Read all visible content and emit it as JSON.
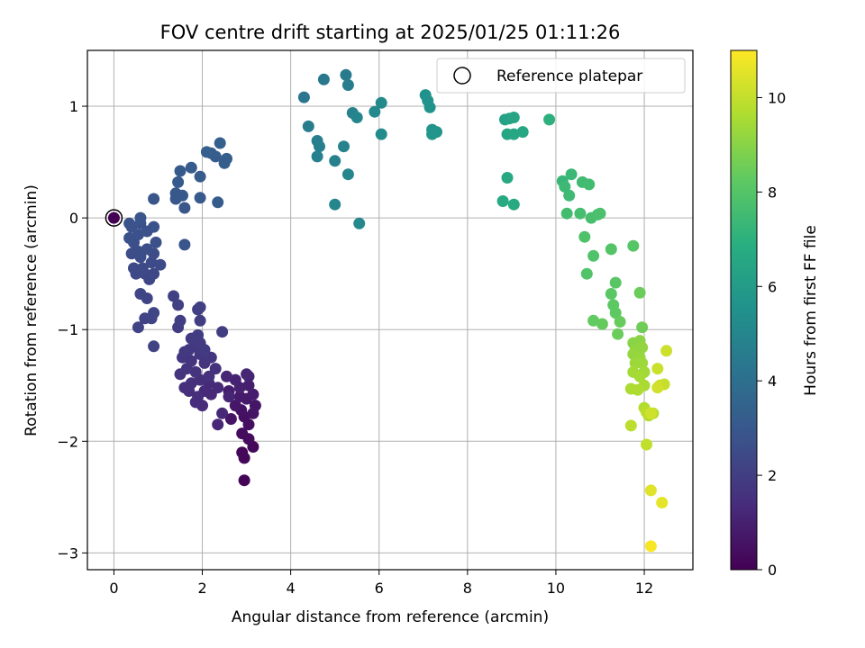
{
  "chart_data": {
    "type": "scatter",
    "title": "FOV centre drift starting at 2025/01/25 01:11:26",
    "xlabel": "Angular distance from reference (arcmin)",
    "ylabel": "Rotation from reference (arcmin)",
    "xlim": [
      -0.6,
      13.1
    ],
    "ylim": [
      -3.15,
      1.5
    ],
    "xticks": [
      0,
      2,
      4,
      6,
      8,
      10,
      12
    ],
    "yticks": [
      -3,
      -2,
      -1,
      0,
      1
    ],
    "grid": true,
    "legend": {
      "position": "top-right",
      "entries": [
        "Reference platepar"
      ]
    },
    "colorbar": {
      "label": "Hours from first FF file",
      "min": 0,
      "max": 11,
      "ticks": [
        0,
        2,
        4,
        6,
        8,
        10
      ],
      "colormap": "viridis"
    },
    "reference_point": {
      "x": 0,
      "y": 0,
      "c": 0
    },
    "points": [
      {
        "x": 2.95,
        "y": -2.35,
        "c": 0.1
      },
      {
        "x": 2.9,
        "y": -2.1,
        "c": 0.15
      },
      {
        "x": 2.95,
        "y": -2.15,
        "c": 0.2
      },
      {
        "x": 3.15,
        "y": -2.05,
        "c": 0.25
      },
      {
        "x": 3.05,
        "y": -1.98,
        "c": 0.3
      },
      {
        "x": 2.9,
        "y": -1.93,
        "c": 0.35
      },
      {
        "x": 3.05,
        "y": -1.85,
        "c": 0.4
      },
      {
        "x": 2.95,
        "y": -1.78,
        "c": 0.45
      },
      {
        "x": 2.88,
        "y": -1.72,
        "c": 0.5
      },
      {
        "x": 3.15,
        "y": -1.75,
        "c": 0.55
      },
      {
        "x": 2.65,
        "y": -1.8,
        "c": 0.6
      },
      {
        "x": 3.2,
        "y": -1.68,
        "c": 0.65
      },
      {
        "x": 2.75,
        "y": -1.68,
        "c": 0.7
      },
      {
        "x": 3.0,
        "y": -1.62,
        "c": 0.75
      },
      {
        "x": 2.85,
        "y": -1.6,
        "c": 0.8
      },
      {
        "x": 3.15,
        "y": -1.58,
        "c": 0.85
      },
      {
        "x": 2.6,
        "y": -1.55,
        "c": 0.9
      },
      {
        "x": 3.05,
        "y": -1.5,
        "c": 0.95
      },
      {
        "x": 2.85,
        "y": -1.52,
        "c": 1.0
      },
      {
        "x": 2.75,
        "y": -1.45,
        "c": 1.05
      },
      {
        "x": 3.05,
        "y": -1.42,
        "c": 1.1
      },
      {
        "x": 2.6,
        "y": -1.6,
        "c": 1.12
      },
      {
        "x": 2.55,
        "y": -1.42,
        "c": 1.15
      },
      {
        "x": 3.0,
        "y": -1.4,
        "c": 1.18
      },
      {
        "x": 2.35,
        "y": -1.85,
        "c": 1.2
      },
      {
        "x": 2.45,
        "y": -1.75,
        "c": 1.22
      },
      {
        "x": 2.2,
        "y": -1.58,
        "c": 1.25
      },
      {
        "x": 2.35,
        "y": -1.52,
        "c": 1.28
      },
      {
        "x": 2.15,
        "y": -1.48,
        "c": 1.3
      },
      {
        "x": 2.05,
        "y": -1.55,
        "c": 1.32
      },
      {
        "x": 2.0,
        "y": -1.68,
        "c": 1.35
      },
      {
        "x": 1.85,
        "y": -1.65,
        "c": 1.38
      },
      {
        "x": 1.9,
        "y": -1.6,
        "c": 1.4
      },
      {
        "x": 1.7,
        "y": -1.55,
        "c": 1.42
      },
      {
        "x": 1.6,
        "y": -1.52,
        "c": 1.45
      },
      {
        "x": 1.75,
        "y": -1.48,
        "c": 1.48
      },
      {
        "x": 1.95,
        "y": -1.45,
        "c": 1.5
      },
      {
        "x": 2.15,
        "y": -1.42,
        "c": 1.52
      },
      {
        "x": 2.3,
        "y": -1.35,
        "c": 1.55
      },
      {
        "x": 1.85,
        "y": -1.38,
        "c": 1.58
      },
      {
        "x": 1.5,
        "y": -1.4,
        "c": 1.6
      },
      {
        "x": 1.65,
        "y": -1.35,
        "c": 1.62
      },
      {
        "x": 2.05,
        "y": -1.3,
        "c": 1.65
      },
      {
        "x": 1.75,
        "y": -1.28,
        "c": 1.68
      },
      {
        "x": 1.55,
        "y": -1.25,
        "c": 1.7
      },
      {
        "x": 1.95,
        "y": -1.22,
        "c": 1.72
      },
      {
        "x": 2.2,
        "y": -1.25,
        "c": 1.75
      },
      {
        "x": 1.7,
        "y": -1.18,
        "c": 1.78
      },
      {
        "x": 1.85,
        "y": -1.15,
        "c": 1.8
      },
      {
        "x": 1.6,
        "y": -1.2,
        "c": 1.82
      },
      {
        "x": 1.95,
        "y": -1.12,
        "c": 1.85
      },
      {
        "x": 1.75,
        "y": -1.08,
        "c": 1.88
      },
      {
        "x": 2.05,
        "y": -1.18,
        "c": 1.9
      },
      {
        "x": 2.45,
        "y": -1.02,
        "c": 1.92
      },
      {
        "x": 1.9,
        "y": -1.05,
        "c": 1.95
      },
      {
        "x": 1.45,
        "y": -0.98,
        "c": 1.98
      },
      {
        "x": 1.95,
        "y": -0.92,
        "c": 2.0
      },
      {
        "x": 1.5,
        "y": -0.92,
        "c": 2.02
      },
      {
        "x": 1.9,
        "y": -0.82,
        "c": 2.05
      },
      {
        "x": 1.95,
        "y": -0.8,
        "c": 2.08
      },
      {
        "x": 1.45,
        "y": -0.78,
        "c": 2.1
      },
      {
        "x": 1.35,
        "y": -0.7,
        "c": 2.12
      },
      {
        "x": 0.9,
        "y": -1.15,
        "c": 2.15
      },
      {
        "x": 0.55,
        "y": -0.98,
        "c": 2.18
      },
      {
        "x": 0.7,
        "y": -0.9,
        "c": 2.2
      },
      {
        "x": 0.85,
        "y": -0.9,
        "c": 2.22
      },
      {
        "x": 0.9,
        "y": -0.85,
        "c": 2.25
      },
      {
        "x": 0.75,
        "y": -0.72,
        "c": 2.28
      },
      {
        "x": 0.6,
        "y": -0.68,
        "c": 2.3
      },
      {
        "x": 0.8,
        "y": -0.55,
        "c": 2.32
      },
      {
        "x": 0.7,
        "y": -0.5,
        "c": 2.35
      },
      {
        "x": 0.9,
        "y": -0.5,
        "c": 2.38
      },
      {
        "x": 0.5,
        "y": -0.5,
        "c": 2.4
      },
      {
        "x": 0.45,
        "y": -0.45,
        "c": 2.42
      },
      {
        "x": 0.65,
        "y": -0.45,
        "c": 2.45
      },
      {
        "x": 0.85,
        "y": -0.4,
        "c": 2.48
      },
      {
        "x": 1.05,
        "y": -0.42,
        "c": 2.5
      },
      {
        "x": 0.9,
        "y": -0.32,
        "c": 2.52
      },
      {
        "x": 0.6,
        "y": -0.35,
        "c": 2.55
      },
      {
        "x": 0.4,
        "y": -0.32,
        "c": 2.58
      },
      {
        "x": 0.55,
        "y": -0.3,
        "c": 2.6
      },
      {
        "x": 0.75,
        "y": -0.28,
        "c": 2.62
      },
      {
        "x": 0.45,
        "y": -0.22,
        "c": 2.65
      },
      {
        "x": 0.95,
        "y": -0.22,
        "c": 2.68
      },
      {
        "x": 0.35,
        "y": -0.18,
        "c": 2.7
      },
      {
        "x": 0.55,
        "y": -0.15,
        "c": 2.72
      },
      {
        "x": 0.75,
        "y": -0.12,
        "c": 2.75
      },
      {
        "x": 0.4,
        "y": -0.08,
        "c": 2.78
      },
      {
        "x": 0.9,
        "y": -0.08,
        "c": 2.8
      },
      {
        "x": 0.6,
        "y": -0.05,
        "c": 2.82
      },
      {
        "x": 0.35,
        "y": -0.05,
        "c": 2.85
      },
      {
        "x": 0.6,
        "y": 0.0,
        "c": 2.88
      },
      {
        "x": 1.6,
        "y": -0.24,
        "c": 2.9
      },
      {
        "x": 0.9,
        "y": 0.17,
        "c": 2.92
      },
      {
        "x": 1.6,
        "y": 0.09,
        "c": 2.95
      },
      {
        "x": 1.4,
        "y": 0.17,
        "c": 2.98
      },
      {
        "x": 1.55,
        "y": 0.2,
        "c": 3.0
      },
      {
        "x": 1.4,
        "y": 0.22,
        "c": 3.02
      },
      {
        "x": 1.95,
        "y": 0.18,
        "c": 3.05
      },
      {
        "x": 1.45,
        "y": 0.32,
        "c": 3.08
      },
      {
        "x": 1.5,
        "y": 0.42,
        "c": 3.1
      },
      {
        "x": 1.75,
        "y": 0.45,
        "c": 3.12
      },
      {
        "x": 1.95,
        "y": 0.37,
        "c": 3.15
      },
      {
        "x": 2.35,
        "y": 0.14,
        "c": 3.18
      },
      {
        "x": 2.2,
        "y": 0.58,
        "c": 3.2
      },
      {
        "x": 2.3,
        "y": 0.55,
        "c": 3.22
      },
      {
        "x": 2.5,
        "y": 0.49,
        "c": 3.25
      },
      {
        "x": 2.55,
        "y": 0.53,
        "c": 3.28
      },
      {
        "x": 2.4,
        "y": 0.67,
        "c": 3.3
      },
      {
        "x": 2.1,
        "y": 0.59,
        "c": 3.32
      },
      {
        "x": 4.3,
        "y": 1.08,
        "c": 4.3
      },
      {
        "x": 4.75,
        "y": 1.24,
        "c": 4.4
      },
      {
        "x": 5.25,
        "y": 1.28,
        "c": 4.5
      },
      {
        "x": 5.3,
        "y": 1.19,
        "c": 4.55
      },
      {
        "x": 4.4,
        "y": 0.82,
        "c": 4.6
      },
      {
        "x": 4.6,
        "y": 0.69,
        "c": 4.65
      },
      {
        "x": 4.65,
        "y": 0.64,
        "c": 4.7
      },
      {
        "x": 4.6,
        "y": 0.55,
        "c": 4.75
      },
      {
        "x": 5.0,
        "y": 0.51,
        "c": 4.8
      },
      {
        "x": 5.2,
        "y": 0.64,
        "c": 4.85
      },
      {
        "x": 5.4,
        "y": 0.94,
        "c": 4.9
      },
      {
        "x": 5.5,
        "y": 0.9,
        "c": 4.95
      },
      {
        "x": 5.3,
        "y": 0.39,
        "c": 5.0
      },
      {
        "x": 5.0,
        "y": 0.12,
        "c": 5.05
      },
      {
        "x": 5.55,
        "y": -0.05,
        "c": 5.1
      },
      {
        "x": 5.9,
        "y": 0.95,
        "c": 5.15
      },
      {
        "x": 6.05,
        "y": 1.03,
        "c": 5.2
      },
      {
        "x": 6.05,
        "y": 0.75,
        "c": 5.25
      },
      {
        "x": 7.05,
        "y": 1.1,
        "c": 5.5
      },
      {
        "x": 7.1,
        "y": 1.05,
        "c": 5.55
      },
      {
        "x": 7.15,
        "y": 0.99,
        "c": 5.6
      },
      {
        "x": 7.2,
        "y": 0.79,
        "c": 5.65
      },
      {
        "x": 7.3,
        "y": 0.77,
        "c": 5.7
      },
      {
        "x": 7.2,
        "y": 0.75,
        "c": 5.75
      },
      {
        "x": 8.85,
        "y": 0.88,
        "c": 6.3
      },
      {
        "x": 8.95,
        "y": 0.89,
        "c": 6.35
      },
      {
        "x": 9.05,
        "y": 0.9,
        "c": 6.4
      },
      {
        "x": 8.9,
        "y": 0.75,
        "c": 6.45
      },
      {
        "x": 9.05,
        "y": 0.75,
        "c": 6.5
      },
      {
        "x": 9.25,
        "y": 0.77,
        "c": 6.55
      },
      {
        "x": 8.9,
        "y": 0.36,
        "c": 6.6
      },
      {
        "x": 8.8,
        "y": 0.15,
        "c": 6.65
      },
      {
        "x": 9.05,
        "y": 0.12,
        "c": 6.7
      },
      {
        "x": 9.85,
        "y": 0.88,
        "c": 7.0
      },
      {
        "x": 10.15,
        "y": 0.33,
        "c": 7.3
      },
      {
        "x": 10.35,
        "y": 0.39,
        "c": 7.35
      },
      {
        "x": 10.2,
        "y": 0.28,
        "c": 7.4
      },
      {
        "x": 10.3,
        "y": 0.2,
        "c": 7.45
      },
      {
        "x": 10.6,
        "y": 0.32,
        "c": 7.5
      },
      {
        "x": 10.75,
        "y": 0.3,
        "c": 7.55
      },
      {
        "x": 10.25,
        "y": 0.04,
        "c": 7.6
      },
      {
        "x": 10.55,
        "y": 0.04,
        "c": 7.65
      },
      {
        "x": 10.8,
        "y": 0.0,
        "c": 7.7
      },
      {
        "x": 10.95,
        "y": 0.03,
        "c": 7.75
      },
      {
        "x": 11.0,
        "y": 0.04,
        "c": 7.8
      },
      {
        "x": 10.65,
        "y": -0.17,
        "c": 7.85
      },
      {
        "x": 10.85,
        "y": -0.34,
        "c": 7.9
      },
      {
        "x": 10.7,
        "y": -0.5,
        "c": 7.95
      },
      {
        "x": 11.25,
        "y": -0.28,
        "c": 8.0
      },
      {
        "x": 11.75,
        "y": -0.25,
        "c": 8.05
      },
      {
        "x": 11.35,
        "y": -0.58,
        "c": 8.1
      },
      {
        "x": 11.25,
        "y": -0.68,
        "c": 8.15
      },
      {
        "x": 11.3,
        "y": -0.78,
        "c": 8.2
      },
      {
        "x": 11.35,
        "y": -0.85,
        "c": 8.25
      },
      {
        "x": 10.85,
        "y": -0.92,
        "c": 8.3
      },
      {
        "x": 11.05,
        "y": -0.95,
        "c": 8.35
      },
      {
        "x": 11.45,
        "y": -0.93,
        "c": 8.4
      },
      {
        "x": 11.4,
        "y": -1.04,
        "c": 8.45
      },
      {
        "x": 11.9,
        "y": -0.67,
        "c": 8.5
      },
      {
        "x": 11.95,
        "y": -0.98,
        "c": 8.55
      },
      {
        "x": 11.75,
        "y": -1.12,
        "c": 9.0
      },
      {
        "x": 11.9,
        "y": -1.1,
        "c": 9.05
      },
      {
        "x": 11.8,
        "y": -1.18,
        "c": 9.1
      },
      {
        "x": 11.95,
        "y": -1.16,
        "c": 9.15
      },
      {
        "x": 11.75,
        "y": -1.22,
        "c": 9.2
      },
      {
        "x": 11.9,
        "y": -1.25,
        "c": 9.25
      },
      {
        "x": 11.8,
        "y": -1.3,
        "c": 9.3
      },
      {
        "x": 11.95,
        "y": -1.3,
        "c": 9.35
      },
      {
        "x": 12.0,
        "y": -1.38,
        "c": 9.4
      },
      {
        "x": 11.75,
        "y": -1.38,
        "c": 9.45
      },
      {
        "x": 11.9,
        "y": -1.42,
        "c": 9.5
      },
      {
        "x": 12.0,
        "y": -1.5,
        "c": 9.55
      },
      {
        "x": 11.7,
        "y": -1.53,
        "c": 9.6
      },
      {
        "x": 11.85,
        "y": -1.54,
        "c": 9.65
      },
      {
        "x": 12.0,
        "y": -1.7,
        "c": 9.7
      },
      {
        "x": 12.1,
        "y": -1.77,
        "c": 9.75
      },
      {
        "x": 12.2,
        "y": -1.75,
        "c": 9.8
      },
      {
        "x": 12.05,
        "y": -1.74,
        "c": 9.85
      },
      {
        "x": 11.7,
        "y": -1.86,
        "c": 9.9
      },
      {
        "x": 12.05,
        "y": -2.03,
        "c": 9.95
      },
      {
        "x": 12.35,
        "y": -1.5,
        "c": 10.0
      },
      {
        "x": 12.45,
        "y": -1.49,
        "c": 10.05
      },
      {
        "x": 12.3,
        "y": -1.35,
        "c": 10.1
      },
      {
        "x": 12.5,
        "y": -1.19,
        "c": 10.15
      },
      {
        "x": 12.15,
        "y": -1.75,
        "c": 10.2
      },
      {
        "x": 12.3,
        "y": -1.52,
        "c": 10.25
      },
      {
        "x": 12.15,
        "y": -2.44,
        "c": 10.5
      },
      {
        "x": 12.4,
        "y": -2.55,
        "c": 10.6
      },
      {
        "x": 12.15,
        "y": -2.94,
        "c": 10.9
      }
    ]
  }
}
